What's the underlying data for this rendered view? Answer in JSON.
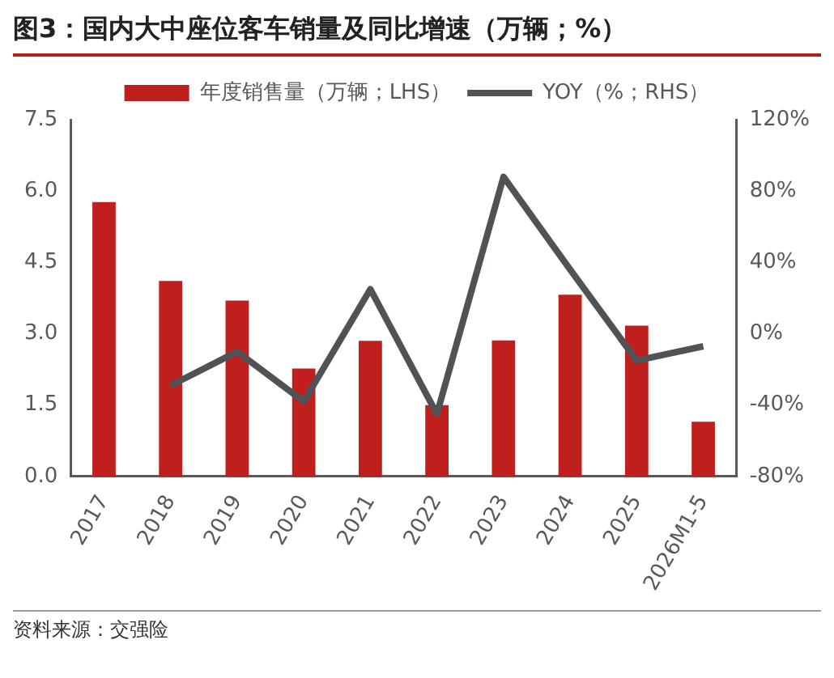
{
  "chart_data": {
    "type": "bar",
    "title": "图3：国内大中座位客车销量及同比增速（万辆；%）",
    "categories": [
      "2017",
      "2018",
      "2019",
      "2020",
      "2021",
      "2022",
      "2023",
      "2024",
      "2025",
      "2026M1-5"
    ],
    "series": [
      {
        "name": "年度销售量（万辆；LHS）",
        "color": "#c0201d",
        "values": [
          5.77,
          4.11,
          3.7,
          2.27,
          2.85,
          1.5,
          2.86,
          3.82,
          3.17,
          1.15
        ]
      },
      {
        "name": "YOY（%；RHS）",
        "type": "line",
        "axis": "y2",
        "color": "#505356",
        "values": [
          null,
          -29,
          -10,
          -38,
          25,
          -45,
          88,
          36,
          -15,
          -7
        ]
      }
    ],
    "ylim": [
      0,
      7.5
    ],
    "yticks": [
      {
        "value": 0,
        "label": "0.0"
      },
      {
        "value": 1.5,
        "label": "1.5"
      },
      {
        "value": 3,
        "label": "3.0"
      },
      {
        "value": 4.5,
        "label": "4.5"
      },
      {
        "value": 6,
        "label": "6.0"
      },
      {
        "value": 7.5,
        "label": "7.5"
      }
    ],
    "y2lim": [
      -80,
      120
    ],
    "y2ticks": [
      {
        "value": -80,
        "label": "-80%"
      },
      {
        "value": -40,
        "label": "-40%"
      },
      {
        "value": 0,
        "label": "0%"
      },
      {
        "value": 40,
        "label": "40%"
      },
      {
        "value": 80,
        "label": "80%"
      },
      {
        "value": 120,
        "label": "120%"
      }
    ],
    "legend": "top",
    "grid": false,
    "marker": "none",
    "annotations": [
      "资料来源：交强险"
    ]
  }
}
